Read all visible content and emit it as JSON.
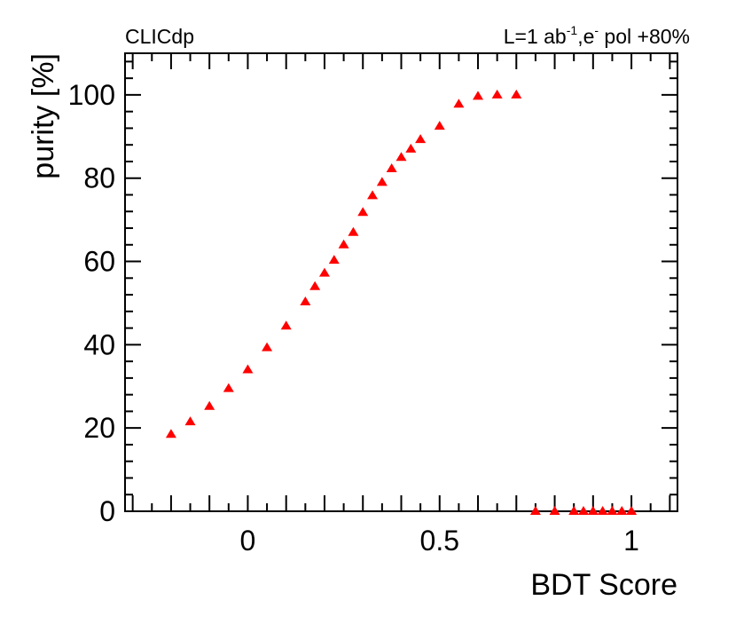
{
  "chart_data": {
    "type": "scatter",
    "experiment_label": "CLICdp",
    "condition_label": {
      "lumi_prefix": "L=1 ab",
      "lumi_exp": "-1",
      "sep": ",e",
      "pol_exp": "-",
      "pol_suffix": " pol +80%"
    },
    "xlabel": "BDT Score",
    "ylabel": "purity [%]",
    "xlim": [
      -0.32,
      1.12
    ],
    "ylim": [
      0,
      110
    ],
    "x_ticks": [
      {
        "value": 0,
        "label": "0"
      },
      {
        "value": 0.5,
        "label": "0.5"
      },
      {
        "value": 1,
        "label": "1"
      }
    ],
    "y_ticks": [
      {
        "value": 0,
        "label": "0"
      },
      {
        "value": 20,
        "label": "20"
      },
      {
        "value": 40,
        "label": "40"
      },
      {
        "value": 60,
        "label": "60"
      },
      {
        "value": 80,
        "label": "80"
      },
      {
        "value": 100,
        "label": "100"
      }
    ],
    "marker": "triangle",
    "marker_color": "#ff0000",
    "points": [
      {
        "x": -0.2,
        "y": 18.5
      },
      {
        "x": -0.15,
        "y": 21.5
      },
      {
        "x": -0.1,
        "y": 25.2
      },
      {
        "x": -0.05,
        "y": 29.5
      },
      {
        "x": 0.0,
        "y": 34.0
      },
      {
        "x": 0.05,
        "y": 39.3
      },
      {
        "x": 0.1,
        "y": 44.5
      },
      {
        "x": 0.15,
        "y": 50.3
      },
      {
        "x": 0.175,
        "y": 54.0
      },
      {
        "x": 0.2,
        "y": 57.2
      },
      {
        "x": 0.225,
        "y": 60.3
      },
      {
        "x": 0.25,
        "y": 64.0
      },
      {
        "x": 0.275,
        "y": 67.0
      },
      {
        "x": 0.3,
        "y": 71.8
      },
      {
        "x": 0.325,
        "y": 75.8
      },
      {
        "x": 0.35,
        "y": 79.0
      },
      {
        "x": 0.375,
        "y": 82.3
      },
      {
        "x": 0.4,
        "y": 85.0
      },
      {
        "x": 0.425,
        "y": 87.0
      },
      {
        "x": 0.45,
        "y": 89.3
      },
      {
        "x": 0.5,
        "y": 92.5
      },
      {
        "x": 0.55,
        "y": 97.8
      },
      {
        "x": 0.6,
        "y": 99.7
      },
      {
        "x": 0.65,
        "y": 100.0
      },
      {
        "x": 0.7,
        "y": 100.0
      },
      {
        "x": 0.75,
        "y": 0
      },
      {
        "x": 0.8,
        "y": 0
      },
      {
        "x": 0.85,
        "y": 0
      },
      {
        "x": 0.875,
        "y": 0
      },
      {
        "x": 0.9,
        "y": 0
      },
      {
        "x": 0.925,
        "y": 0
      },
      {
        "x": 0.95,
        "y": 0
      },
      {
        "x": 0.975,
        "y": 0
      },
      {
        "x": 1.0,
        "y": 0
      }
    ]
  }
}
